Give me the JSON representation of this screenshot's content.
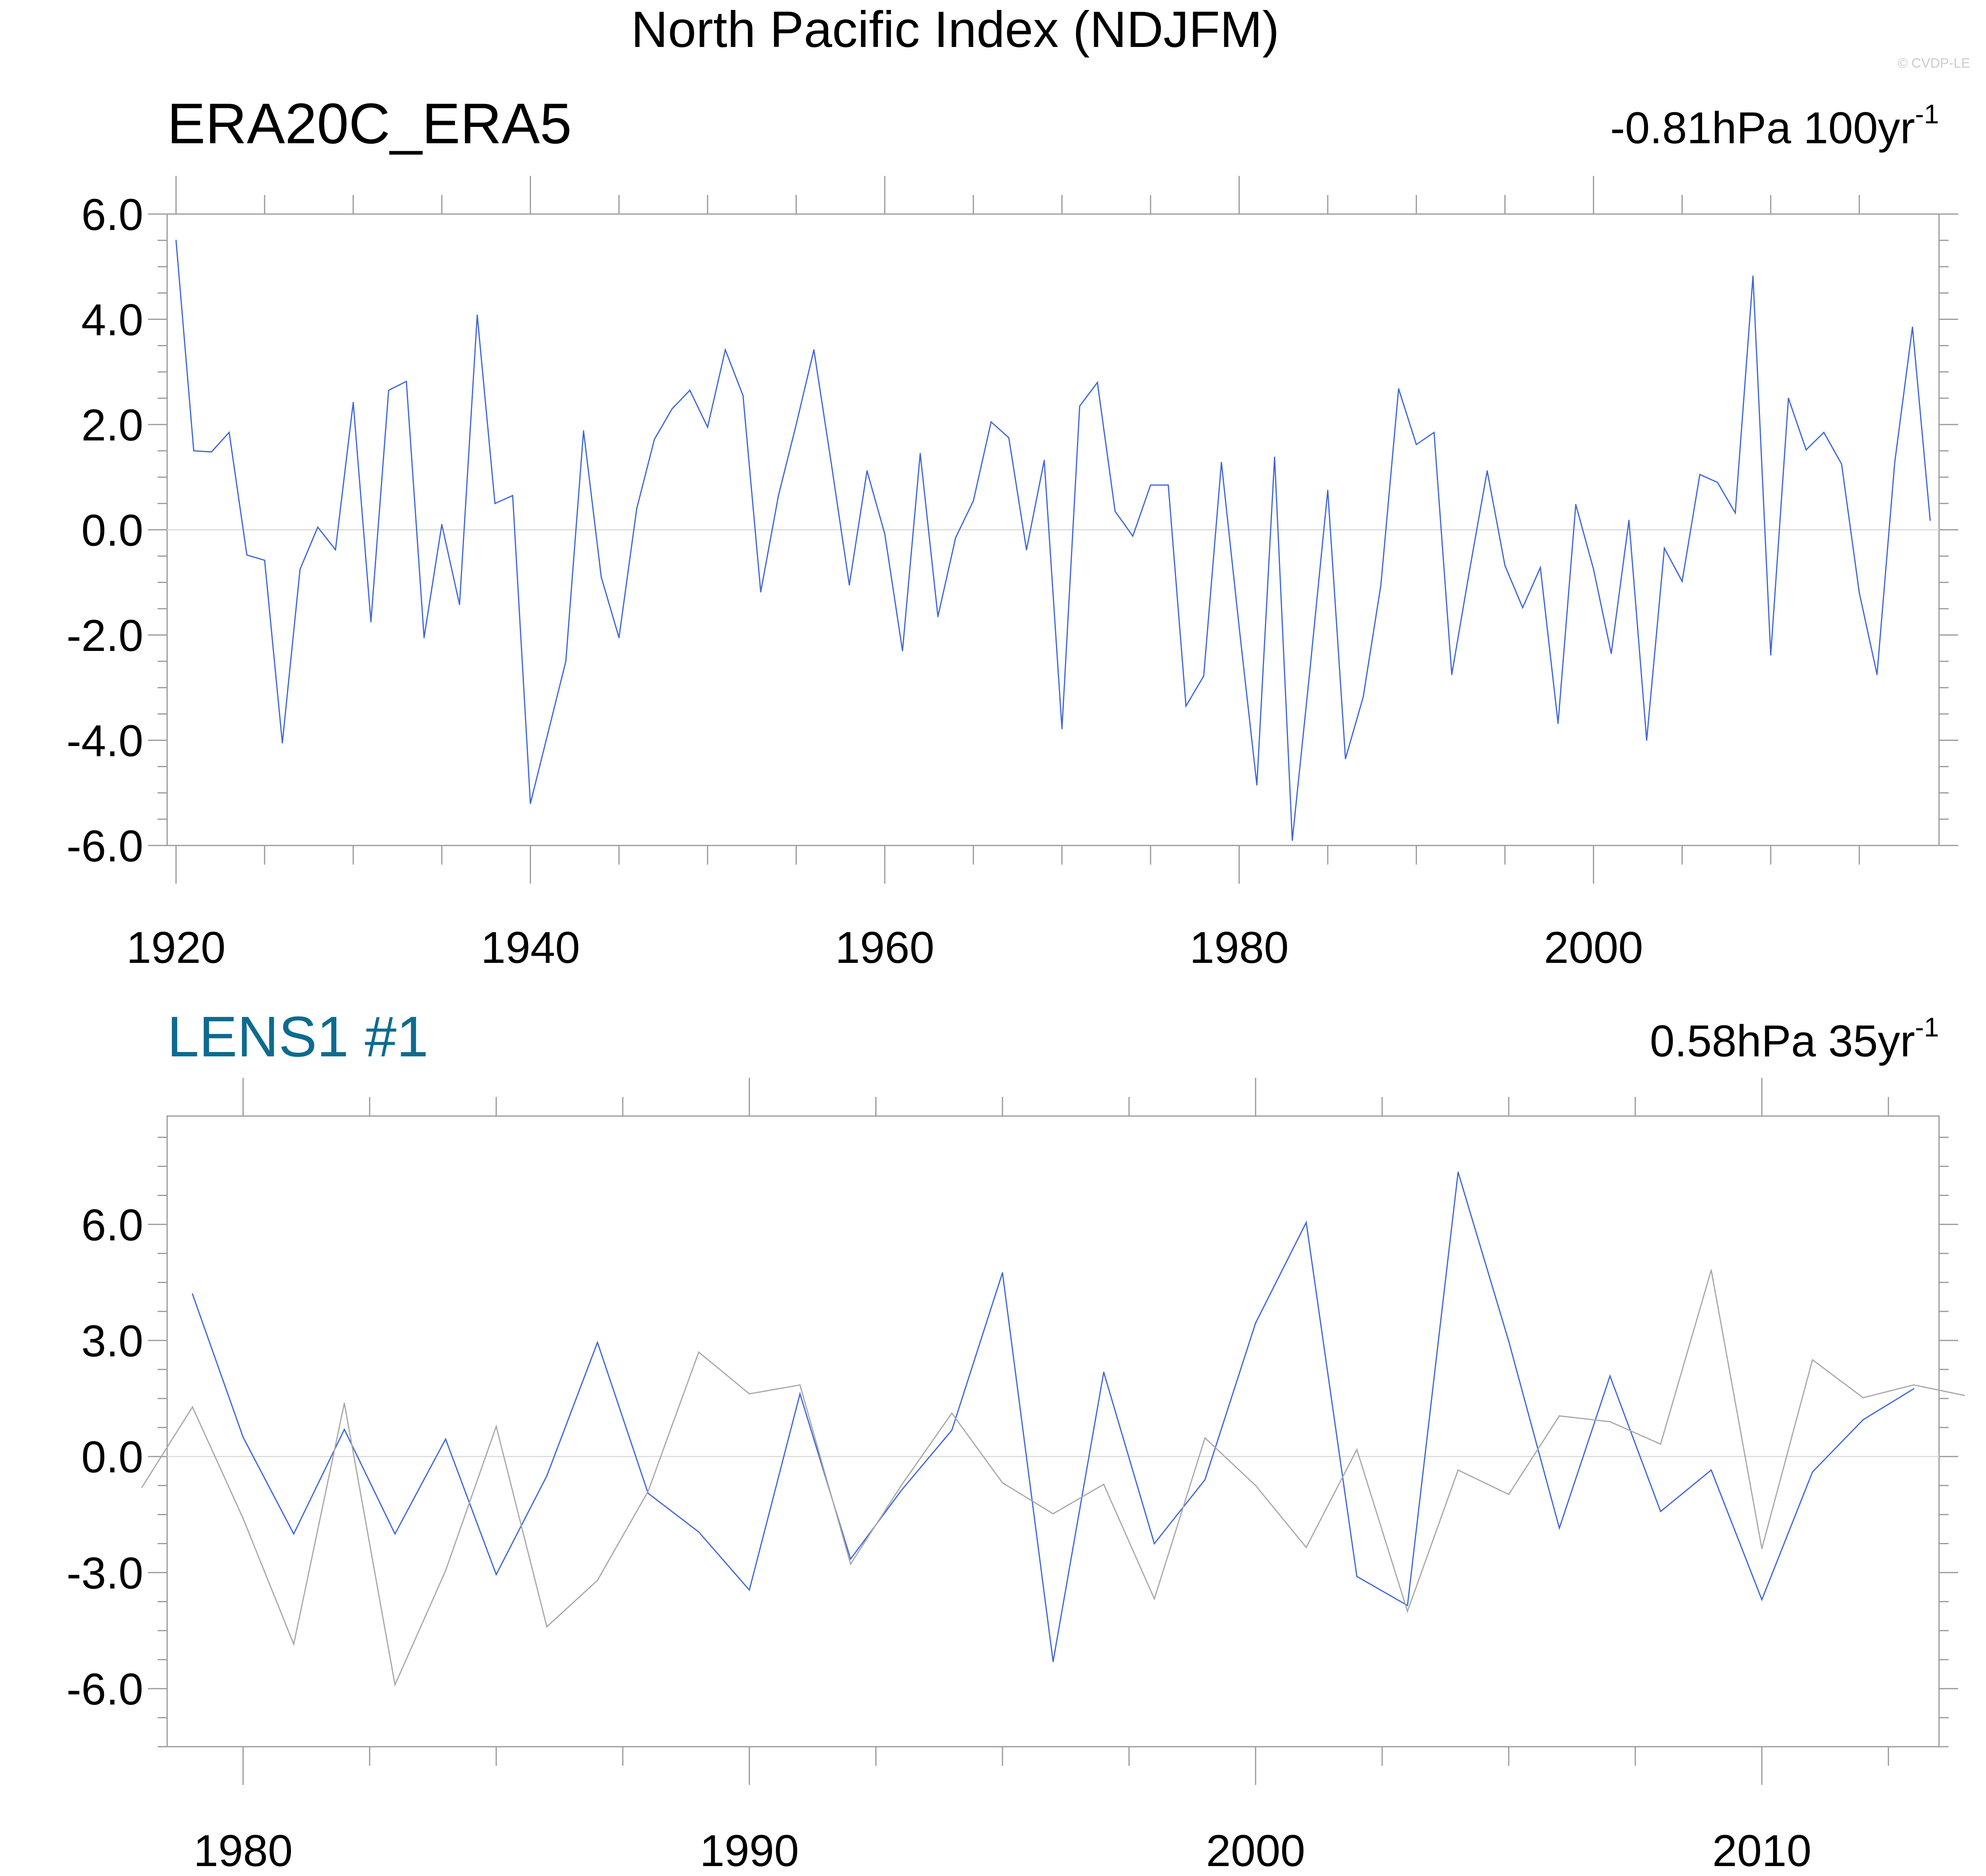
{
  "figure": {
    "title": "North Pacific Index (NDJFM)",
    "watermark": "© CVDP-LE"
  },
  "colors": {
    "series_blue": "#3f66d6",
    "series_gray": "#a8a8a8",
    "zero_line": "#dcdcdc",
    "frame": "#9a9a9a",
    "lens_title": "#0d6b8f"
  },
  "chart_data": [
    {
      "type": "line",
      "panel": "top",
      "title": "ERA20C_ERA5",
      "trend_label": {
        "value": "-0.81hPa 100yr",
        "sup": "-1"
      },
      "xlim": [
        1919.5,
        2019.5
      ],
      "ylim": [
        -6,
        6
      ],
      "xticks": [
        1920,
        1940,
        1960,
        1980,
        2000
      ],
      "xtick_labels": [
        "1920",
        "1940",
        "1960",
        "1980",
        "2000"
      ],
      "yticks": [
        6,
        4,
        2,
        0,
        -2,
        -4,
        -6
      ],
      "ytick_labels": [
        "6.0",
        "4.0",
        "2.0",
        "0.0",
        "-2.0",
        "-4.0",
        "-6.0"
      ],
      "grid": false,
      "series": [
        {
          "color": "#3f66d6",
          "x_start": 1920,
          "values": [
            5.5,
            1.5,
            1.48,
            1.85,
            -0.48,
            -0.58,
            -4.05,
            -0.75,
            0.05,
            -0.38,
            2.42,
            -1.75,
            2.65,
            2.82,
            -2.05,
            0.1,
            -1.42,
            4.08,
            0.5,
            0.65,
            -5.2,
            -3.85,
            -2.5,
            1.88,
            -0.9,
            -2.05,
            0.4,
            1.72,
            2.3,
            2.65,
            1.95,
            3.42,
            2.55,
            -1.18,
            0.65,
            2.0,
            3.42,
            1.22,
            -1.05,
            1.12,
            -0.08,
            -2.3,
            1.45,
            -1.65,
            -0.15,
            0.55,
            2.05,
            1.75,
            -0.38,
            1.32,
            -3.78,
            2.35,
            2.8,
            0.35,
            -0.12,
            0.85,
            0.85,
            -3.35,
            -2.78,
            1.28,
            -1.85,
            -4.85,
            1.38,
            -5.9,
            -2.65,
            0.75,
            -4.35,
            -3.18,
            -1.05,
            2.68,
            1.62,
            1.85,
            -2.75,
            -0.78,
            1.12,
            -0.68,
            -1.48,
            -0.72,
            -3.68,
            0.48,
            -0.75,
            -2.35,
            0.18,
            -4.0,
            -0.35,
            -0.98,
            1.05,
            0.9,
            0.32,
            4.82,
            -2.38,
            2.5,
            1.52,
            1.85,
            1.25,
            -1.2,
            -2.75,
            1.28,
            3.85,
            0.18
          ]
        }
      ]
    },
    {
      "type": "line",
      "panel": "bottom",
      "title": "LENS1 #1",
      "trend_label": {
        "value": "0.58hPa 35yr",
        "sup": "-1"
      },
      "xlim": [
        1978.5,
        2013.5
      ],
      "ylim": [
        -7.5,
        8.8
      ],
      "xticks": [
        1980,
        1990,
        2000,
        2010
      ],
      "xtick_labels": [
        "1980",
        "1990",
        "2000",
        "2010"
      ],
      "yticks": [
        6,
        3,
        0,
        -3,
        -6
      ],
      "ytick_labels": [
        "6.0",
        "3.0",
        "0.0",
        "-3.0",
        "-6.0"
      ],
      "grid": false,
      "series": [
        {
          "color": "#3f66d6",
          "x_start": 1979,
          "values": [
            4.2,
            0.5,
            -2.0,
            0.7,
            -2.0,
            0.45,
            -3.05,
            -0.5,
            2.95,
            -0.95,
            -1.95,
            -3.45,
            1.62,
            -2.65,
            -0.88,
            0.68,
            4.75,
            -5.3,
            2.18,
            -2.25,
            -0.6,
            3.45,
            6.05,
            -3.1,
            -3.85,
            7.35,
            2.98,
            -1.85,
            2.08,
            -1.42,
            -0.35,
            -3.7,
            -0.4,
            0.95,
            1.75
          ]
        },
        {
          "color": "#a8a8a8",
          "x_start": 1978,
          "values": [
            -0.8,
            1.28,
            -1.6,
            -4.85,
            1.38,
            -5.9,
            -2.95,
            0.78,
            -4.4,
            -3.2,
            -0.9,
            2.7,
            1.62,
            1.85,
            -2.78,
            -0.75,
            1.12,
            -0.68,
            -1.48,
            -0.72,
            -3.68,
            0.48,
            -0.75,
            -2.35,
            0.18,
            -4.0,
            -0.35,
            -0.98,
            1.05,
            0.9,
            0.32,
            4.82,
            -2.38,
            2.5,
            1.52,
            1.85,
            1.58
          ]
        }
      ]
    }
  ]
}
